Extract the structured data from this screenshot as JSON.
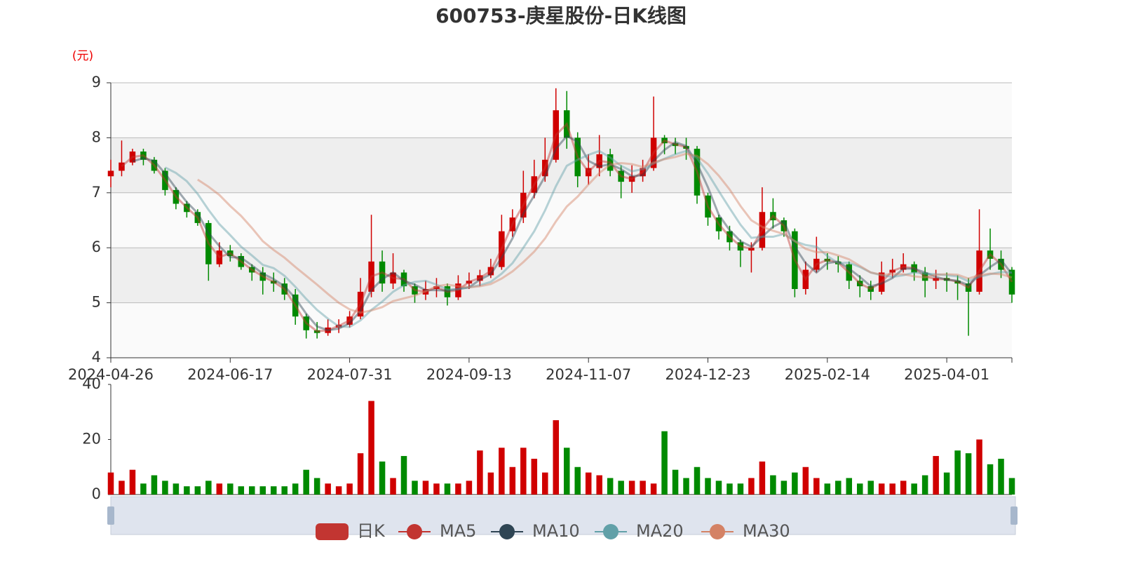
{
  "chart_data": {
    "type": "candlestick",
    "title": "600753-庚星股份-日K线图",
    "y_unit": "(元)",
    "categories": [
      "2024-04-26",
      null,
      null,
      null,
      null,
      null,
      null,
      null,
      null,
      null,
      null,
      "2024-06-17",
      null,
      null,
      null,
      null,
      null,
      null,
      null,
      null,
      null,
      null,
      "2024-07-31",
      null,
      null,
      null,
      null,
      null,
      null,
      null,
      null,
      null,
      null,
      "2024-09-13",
      null,
      null,
      null,
      null,
      null,
      null,
      null,
      null,
      null,
      null,
      "2024-11-07",
      null,
      null,
      null,
      null,
      null,
      null,
      null,
      null,
      null,
      null,
      "2024-12-23",
      null,
      null,
      null,
      null,
      null,
      null,
      null,
      null,
      null,
      null,
      "2025-02-14",
      null,
      null,
      null,
      null,
      null,
      null,
      null,
      null,
      null,
      null,
      "2025-04-01",
      null,
      null,
      null,
      null,
      null,
      null
    ],
    "ylim": [
      4,
      9
    ],
    "yticks": [
      4,
      5,
      6,
      7,
      8,
      9
    ],
    "up_color": "#d00000",
    "down_color": "#008a00",
    "series": [
      {
        "name": "日K",
        "type": "candlestick",
        "color": "#c23531",
        "values": [
          [
            7.3,
            7.4,
            7.1,
            7.6
          ],
          [
            7.4,
            7.55,
            7.3,
            7.95
          ],
          [
            7.55,
            7.75,
            7.5,
            7.8
          ],
          [
            7.75,
            7.6,
            7.5,
            7.8
          ],
          [
            7.6,
            7.4,
            7.35,
            7.65
          ],
          [
            7.4,
            7.05,
            6.95,
            7.45
          ],
          [
            7.05,
            6.8,
            6.7,
            7.1
          ],
          [
            6.8,
            6.65,
            6.55,
            6.85
          ],
          [
            6.65,
            6.45,
            6.4,
            6.7
          ],
          [
            6.45,
            5.7,
            5.4,
            6.5
          ],
          [
            5.7,
            5.95,
            5.65,
            6.1
          ],
          [
            5.95,
            5.85,
            5.75,
            6.05
          ],
          [
            5.85,
            5.65,
            5.6,
            5.9
          ],
          [
            5.65,
            5.55,
            5.4,
            5.7
          ],
          [
            5.55,
            5.4,
            5.15,
            5.65
          ],
          [
            5.4,
            5.35,
            5.2,
            5.55
          ],
          [
            5.35,
            5.15,
            5.05,
            5.45
          ],
          [
            5.15,
            4.75,
            4.6,
            5.25
          ],
          [
            4.75,
            4.5,
            4.35,
            4.8
          ],
          [
            4.5,
            4.45,
            4.35,
            4.65
          ],
          [
            4.45,
            4.55,
            4.4,
            4.7
          ],
          [
            4.55,
            4.6,
            4.45,
            4.7
          ],
          [
            4.6,
            4.75,
            4.55,
            4.85
          ],
          [
            4.75,
            5.2,
            4.7,
            5.45
          ],
          [
            5.2,
            5.75,
            5.1,
            6.6
          ],
          [
            5.75,
            5.35,
            5.2,
            5.95
          ],
          [
            5.35,
            5.55,
            5.25,
            5.9
          ],
          [
            5.55,
            5.3,
            5.2,
            5.6
          ],
          [
            5.3,
            5.15,
            5.0,
            5.35
          ],
          [
            5.15,
            5.25,
            5.05,
            5.4
          ],
          [
            5.25,
            5.3,
            5.1,
            5.45
          ],
          [
            5.3,
            5.1,
            4.95,
            5.35
          ],
          [
            5.1,
            5.35,
            5.05,
            5.5
          ],
          [
            5.35,
            5.4,
            5.25,
            5.55
          ],
          [
            5.4,
            5.5,
            5.3,
            5.6
          ],
          [
            5.5,
            5.65,
            5.45,
            5.8
          ],
          [
            5.65,
            6.3,
            5.6,
            6.6
          ],
          [
            6.3,
            6.55,
            6.2,
            6.7
          ],
          [
            6.55,
            7.0,
            6.45,
            7.4
          ],
          [
            7.0,
            7.3,
            6.9,
            7.6
          ],
          [
            7.3,
            7.6,
            7.2,
            8.0
          ],
          [
            7.6,
            8.5,
            7.55,
            8.9
          ],
          [
            8.5,
            8.0,
            7.8,
            8.85
          ],
          [
            8.0,
            7.3,
            7.1,
            8.1
          ],
          [
            7.3,
            7.45,
            7.15,
            7.7
          ],
          [
            7.45,
            7.7,
            7.3,
            8.05
          ],
          [
            7.7,
            7.4,
            7.3,
            7.8
          ],
          [
            7.4,
            7.2,
            6.9,
            7.5
          ],
          [
            7.2,
            7.3,
            7.0,
            7.5
          ],
          [
            7.3,
            7.45,
            7.2,
            7.6
          ],
          [
            7.45,
            8.0,
            7.4,
            8.75
          ],
          [
            8.0,
            7.9,
            7.7,
            8.05
          ],
          [
            7.9,
            7.85,
            7.7,
            8.0
          ],
          [
            7.85,
            7.8,
            7.6,
            8.0
          ],
          [
            7.8,
            6.95,
            6.8,
            7.85
          ],
          [
            6.95,
            6.55,
            6.4,
            7.0
          ],
          [
            6.55,
            6.3,
            6.15,
            6.6
          ],
          [
            6.3,
            6.1,
            5.95,
            6.4
          ],
          [
            6.1,
            5.95,
            5.65,
            6.15
          ],
          [
            5.95,
            6.0,
            5.55,
            6.1
          ],
          [
            6.0,
            6.65,
            5.95,
            7.1
          ],
          [
            6.65,
            6.5,
            6.35,
            6.9
          ],
          [
            6.5,
            6.3,
            6.2,
            6.55
          ],
          [
            6.3,
            5.25,
            5.1,
            6.35
          ],
          [
            5.25,
            5.6,
            5.15,
            5.75
          ],
          [
            5.6,
            5.8,
            5.55,
            6.2
          ],
          [
            5.8,
            5.75,
            5.6,
            5.9
          ],
          [
            5.75,
            5.7,
            5.55,
            5.85
          ],
          [
            5.7,
            5.4,
            5.25,
            5.75
          ],
          [
            5.4,
            5.3,
            5.1,
            5.5
          ],
          [
            5.3,
            5.2,
            5.05,
            5.4
          ],
          [
            5.2,
            5.55,
            5.15,
            5.75
          ],
          [
            5.55,
            5.6,
            5.45,
            5.8
          ],
          [
            5.6,
            5.7,
            5.55,
            5.9
          ],
          [
            5.7,
            5.55,
            5.4,
            5.75
          ],
          [
            5.55,
            5.4,
            5.1,
            5.65
          ],
          [
            5.4,
            5.45,
            5.25,
            5.6
          ],
          [
            5.45,
            5.4,
            5.2,
            5.55
          ],
          [
            5.4,
            5.35,
            5.05,
            5.5
          ],
          [
            5.35,
            5.2,
            4.4,
            5.45
          ],
          [
            5.2,
            5.95,
            5.15,
            6.7
          ],
          [
            5.95,
            5.8,
            5.6,
            6.35
          ],
          [
            5.8,
            5.6,
            5.45,
            5.95
          ],
          [
            5.6,
            5.15,
            5.0,
            5.65
          ]
        ]
      },
      {
        "name": "MA5",
        "type": "line",
        "color": "#c23531",
        "values": [
          null,
          7.48,
          7.65,
          7.68,
          7.5,
          7.23,
          6.93,
          6.73,
          6.55,
          6.08,
          5.83,
          5.9,
          5.75,
          5.6,
          5.48,
          5.38,
          5.25,
          4.95,
          4.63,
          4.48,
          4.5,
          4.58,
          4.68,
          4.98,
          5.48,
          5.55,
          5.45,
          5.43,
          5.23,
          5.2,
          5.28,
          5.2,
          5.23,
          5.38,
          5.45,
          5.58,
          5.98,
          6.43,
          6.78,
          7.15,
          7.45,
          8.05,
          8.25,
          7.65,
          7.38,
          7.58,
          7.55,
          7.3,
          7.25,
          7.38,
          7.73,
          7.95,
          7.88,
          7.83,
          7.38,
          6.75,
          6.43,
          6.2,
          6.03,
          5.98,
          6.33,
          6.58,
          6.4,
          5.78,
          5.43,
          5.7,
          5.78,
          5.73,
          5.55,
          5.35,
          5.25,
          5.38,
          5.58,
          5.65,
          5.63,
          5.48,
          5.43,
          5.43,
          5.38,
          5.28,
          5.58,
          5.88,
          5.7,
          5.38
        ]
      },
      {
        "name": "MA10",
        "type": "line",
        "color": "#2f4554",
        "values": [
          null,
          null,
          7.57,
          7.63,
          7.58,
          7.35,
          7.08,
          6.83,
          6.63,
          6.27,
          6.03,
          5.83,
          5.82,
          5.68,
          5.53,
          5.43,
          5.3,
          5.08,
          4.8,
          4.57,
          4.5,
          4.53,
          4.63,
          4.85,
          5.23,
          5.43,
          5.55,
          5.4,
          5.33,
          5.23,
          5.23,
          5.22,
          5.25,
          5.28,
          5.42,
          5.52,
          5.82,
          6.17,
          6.62,
          6.95,
          7.3,
          7.8,
          8.03,
          7.93,
          7.58,
          7.48,
          7.52,
          7.43,
          7.3,
          7.32,
          7.58,
          7.78,
          7.92,
          7.85,
          7.53,
          7.1,
          6.6,
          6.32,
          6.12,
          6.02,
          6.2,
          6.38,
          6.48,
          6.02,
          5.72,
          5.55,
          5.72,
          5.75,
          5.62,
          5.47,
          5.3,
          5.35,
          5.45,
          5.62,
          5.62,
          5.55,
          5.47,
          5.42,
          5.4,
          5.32,
          5.5,
          5.65,
          5.78,
          5.52
        ]
      },
      {
        "name": "MA20",
        "type": "line",
        "color": "#61a0a8",
        "values": [
          null,
          null,
          null,
          null,
          null,
          7.46,
          7.36,
          7.21,
          6.98,
          6.69,
          6.43,
          6.23,
          6.02,
          5.86,
          5.69,
          5.63,
          5.49,
          5.29,
          5.07,
          4.87,
          4.71,
          4.57,
          4.56,
          4.68,
          4.87,
          5.02,
          5.2,
          5.32,
          5.38,
          5.4,
          5.33,
          5.24,
          5.25,
          5.28,
          5.32,
          5.38,
          5.53,
          5.72,
          6.0,
          6.3,
          6.68,
          7.12,
          7.49,
          7.6,
          7.69,
          7.76,
          7.64,
          7.49,
          7.39,
          7.43,
          7.53,
          7.62,
          7.7,
          7.76,
          7.63,
          7.35,
          7.03,
          6.72,
          6.42,
          6.18,
          6.2,
          6.2,
          6.25,
          6.12,
          6.05,
          6.02,
          5.85,
          5.72,
          5.73,
          5.65,
          5.55,
          5.5,
          5.47,
          5.5,
          5.55,
          5.53,
          5.52,
          5.5,
          5.48,
          5.39,
          5.47,
          5.52,
          5.56,
          5.55
        ]
      },
      {
        "name": "MA30",
        "type": "line",
        "color": "#d48265",
        "values": [
          null,
          null,
          null,
          null,
          null,
          null,
          null,
          null,
          7.24,
          7.11,
          6.96,
          6.76,
          6.58,
          6.36,
          6.12,
          5.96,
          5.82,
          5.65,
          5.49,
          5.33,
          5.16,
          5.0,
          4.88,
          4.82,
          4.86,
          4.92,
          5.03,
          5.08,
          5.13,
          5.21,
          5.3,
          5.33,
          5.3,
          5.28,
          5.3,
          5.34,
          5.44,
          5.57,
          5.74,
          5.93,
          6.17,
          6.48,
          6.75,
          6.93,
          7.15,
          7.36,
          7.51,
          7.54,
          7.52,
          7.47,
          7.55,
          7.61,
          7.65,
          7.71,
          7.67,
          7.52,
          7.31,
          7.06,
          6.76,
          6.5,
          6.38,
          6.31,
          6.25,
          6.12,
          5.98,
          5.92,
          5.92,
          5.86,
          5.79,
          5.67,
          5.55,
          5.51,
          5.52,
          5.52,
          5.48,
          5.46,
          5.51,
          5.52,
          5.51,
          5.44,
          5.5,
          5.53,
          5.52,
          5.46
        ]
      }
    ],
    "volume": {
      "ylim": [
        0,
        40
      ],
      "yticks": [
        0,
        20,
        40
      ],
      "values": [
        8,
        5,
        9,
        4,
        7,
        5,
        4,
        3,
        3,
        5,
        4,
        4,
        3,
        3,
        3,
        3,
        3,
        4,
        9,
        6,
        4,
        3,
        4,
        15,
        34,
        12,
        6,
        14,
        5,
        5,
        4,
        4,
        4,
        5,
        16,
        8,
        17,
        10,
        17,
        13,
        8,
        27,
        17,
        10,
        8,
        7,
        6,
        5,
        5,
        5,
        4,
        23,
        9,
        6,
        10,
        6,
        5,
        4,
        4,
        6,
        12,
        7,
        5,
        8,
        10,
        6,
        4,
        5,
        6,
        4,
        5,
        4,
        4,
        5,
        4,
        7,
        14,
        8,
        16,
        15,
        20,
        11,
        13,
        6
      ]
    }
  }
}
